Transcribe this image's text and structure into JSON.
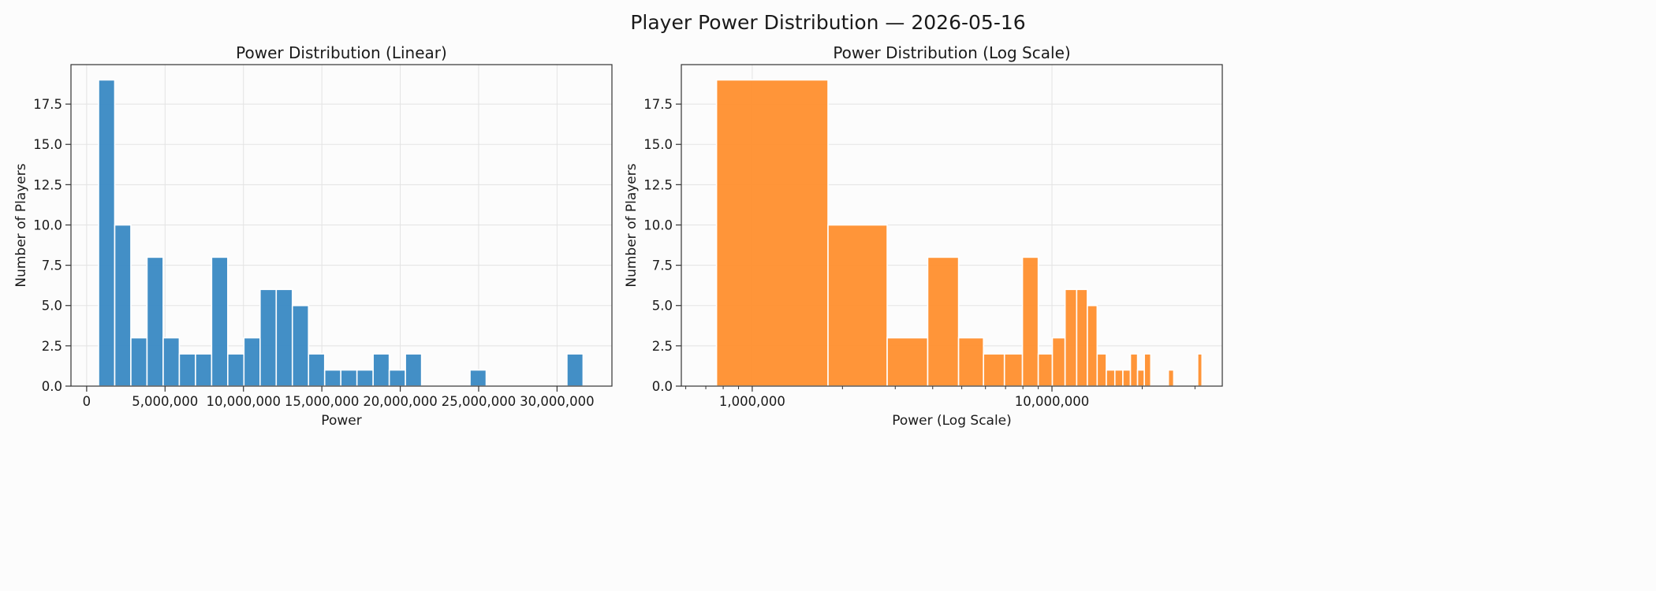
{
  "figure": {
    "suptitle": "Player Power Distribution — 2026-05-16",
    "background": "#fcfcfc"
  },
  "chart_data": [
    {
      "type": "bar",
      "title": "Power Distribution (Linear)",
      "xlabel": "Power",
      "ylabel": "Number of Players",
      "x_scale": "linear",
      "xlim": [
        -1000000,
        33500000
      ],
      "ylim": [
        0,
        19.95
      ],
      "xticks": [
        0,
        5000000,
        10000000,
        15000000,
        20000000,
        25000000,
        30000000
      ],
      "xtick_labels": [
        "0",
        "5,000,000",
        "10,000,000",
        "15,000,000",
        "20,000,000",
        "25,000,000",
        "30,000,000"
      ],
      "yticks": [
        0,
        2.5,
        5,
        7.5,
        10,
        12.5,
        15,
        17.5
      ],
      "ytick_labels": [
        "0.0",
        "2.5",
        "5.0",
        "7.5",
        "10.0",
        "12.5",
        "15.0",
        "17.5"
      ],
      "grid": true,
      "color": "#3d8bc4",
      "bin_edges": [
        760000,
        1790000,
        2820000,
        3850000,
        4880000,
        5910000,
        6940000,
        7970000,
        9000000,
        10030000,
        11060000,
        12090000,
        13120000,
        14150000,
        15180000,
        16210000,
        17240000,
        18270000,
        19300000,
        20330000,
        21360000,
        22390000,
        23420000,
        24450000,
        25480000,
        26510000,
        27540000,
        28570000,
        29600000,
        30630000,
        31660000
      ],
      "counts": [
        19,
        10,
        3,
        8,
        3,
        2,
        2,
        8,
        2,
        3,
        6,
        6,
        5,
        2,
        1,
        1,
        1,
        2,
        1,
        2,
        0,
        0,
        0,
        1,
        0,
        0,
        0,
        0,
        0,
        2
      ]
    },
    {
      "type": "bar",
      "title": "Power Distribution (Log Scale)",
      "xlabel": "Power (Log Scale)",
      "ylabel": "Number of Players",
      "x_scale": "log",
      "xlim": [
        580000,
        37000000
      ],
      "ylim": [
        0,
        19.95
      ],
      "xticks": [
        1000000,
        10000000
      ],
      "xtick_labels": [
        "1,000,000",
        "10,000,000"
      ],
      "yticks": [
        0,
        2.5,
        5,
        7.5,
        10,
        12.5,
        15,
        17.5
      ],
      "ytick_labels": [
        "0.0",
        "2.5",
        "5.0",
        "7.5",
        "10.0",
        "12.5",
        "15.0",
        "17.5"
      ],
      "grid": true,
      "color": "#ff9233",
      "bin_edges": [
        760000,
        1790000,
        2820000,
        3850000,
        4880000,
        5910000,
        6940000,
        7970000,
        9000000,
        10030000,
        11060000,
        12090000,
        13120000,
        14150000,
        15180000,
        16210000,
        17240000,
        18270000,
        19300000,
        20330000,
        21360000,
        22390000,
        23420000,
        24450000,
        25480000,
        26510000,
        27540000,
        28570000,
        29600000,
        30630000,
        31660000
      ],
      "counts": [
        19,
        10,
        3,
        8,
        3,
        2,
        2,
        8,
        2,
        3,
        6,
        6,
        5,
        2,
        1,
        1,
        1,
        2,
        1,
        2,
        0,
        0,
        0,
        1,
        0,
        0,
        0,
        0,
        0,
        2
      ]
    }
  ]
}
